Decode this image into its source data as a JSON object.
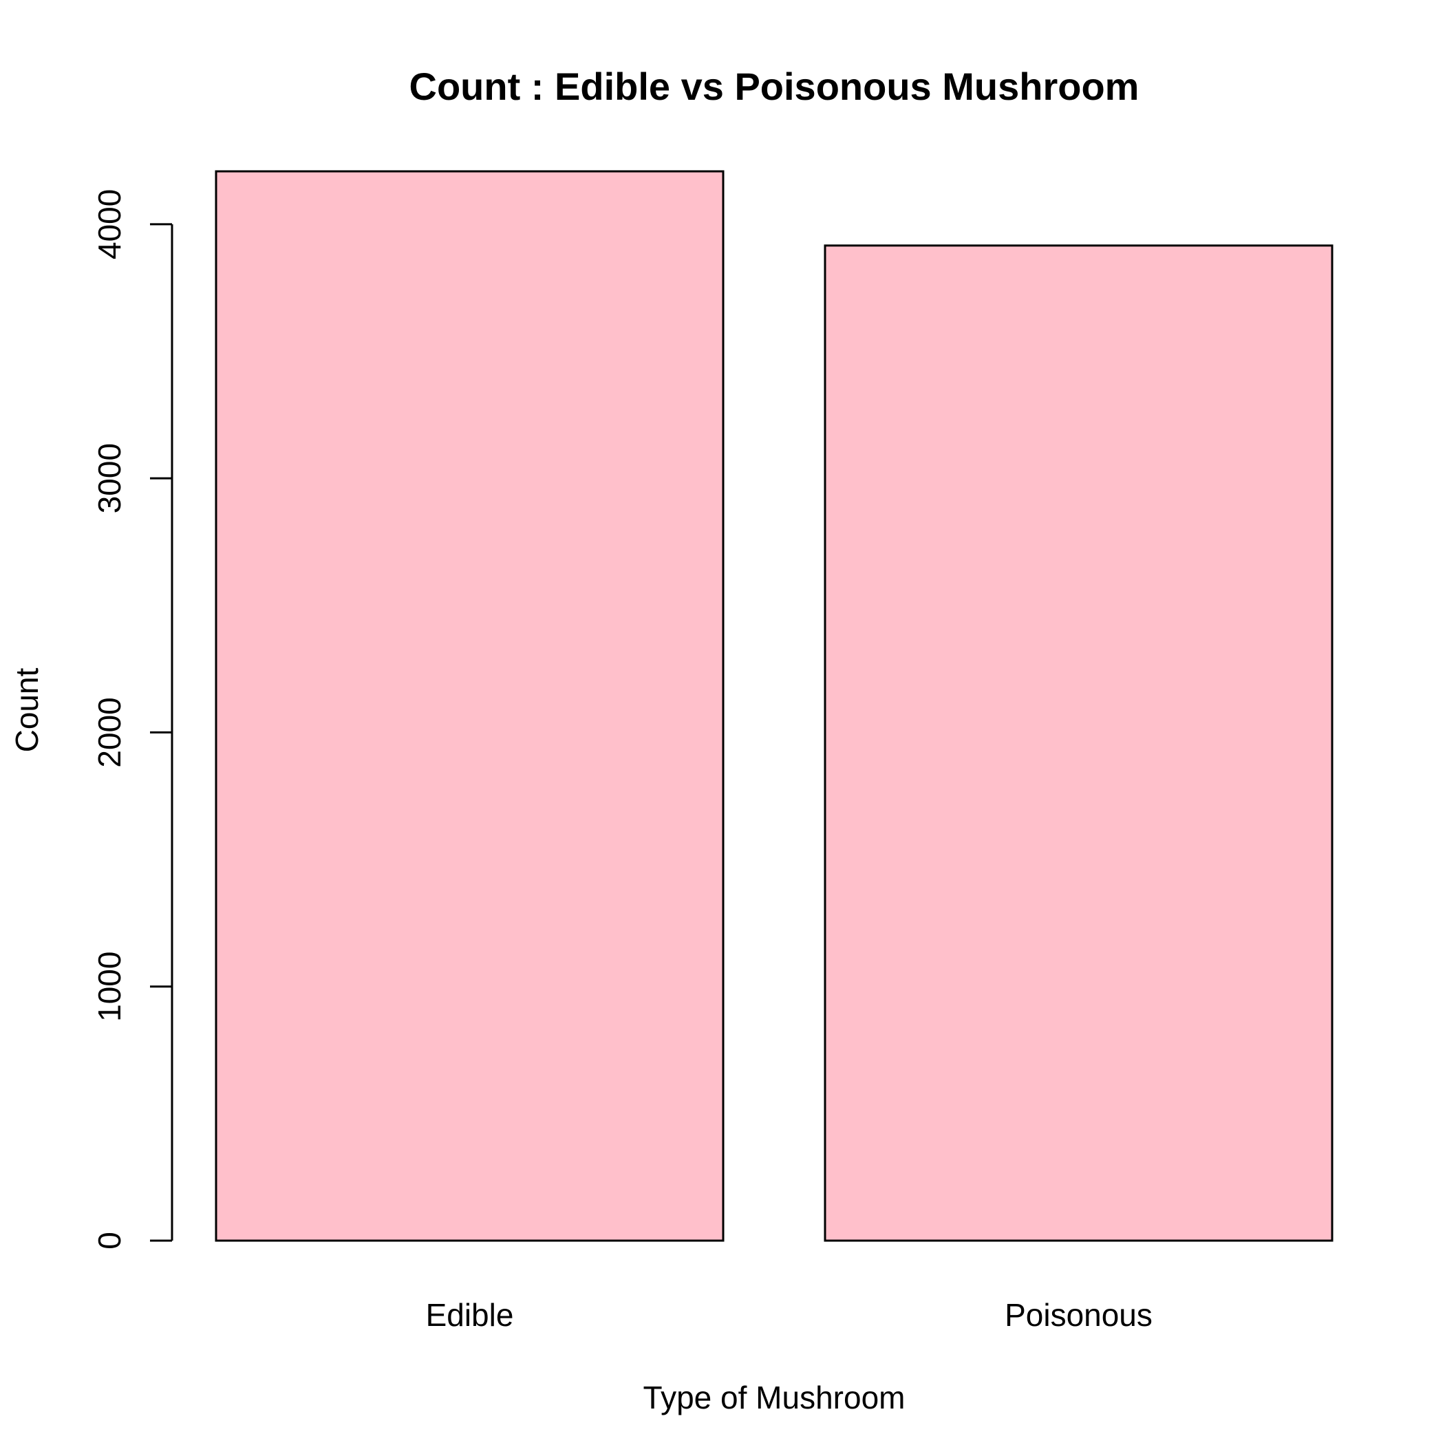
{
  "chart_data": {
    "type": "bar",
    "title": "Count : Edible vs Poisonous Mushroom",
    "xlabel": "Type of Mushroom",
    "ylabel": "Count",
    "categories": [
      "Edible",
      "Poisonous"
    ],
    "values": [
      4208,
      3916
    ],
    "ylim": [
      0,
      4208
    ],
    "yticks": [
      "0",
      "1000",
      "2000",
      "3000",
      "4000"
    ],
    "bar_fill": "#ffc0cb",
    "bar_stroke": "#000000",
    "grid": false,
    "legend": "none"
  }
}
